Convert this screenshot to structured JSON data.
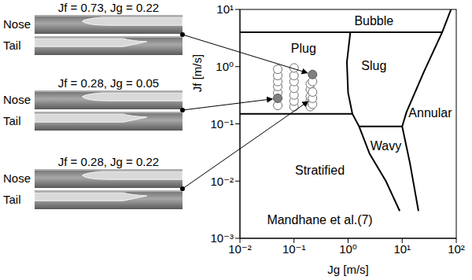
{
  "chart_data": {
    "type": "scatter",
    "x_label": "Jg [m/s]",
    "y_label": "Jf [m/s]",
    "log": true,
    "grid": false,
    "xlim": [
      0.01,
      100
    ],
    "xticks": [
      {
        "value": 0.01,
        "label": "10⁻²"
      },
      {
        "value": 0.1,
        "label": "10⁻¹"
      },
      {
        "value": 1,
        "label": "10⁰"
      },
      {
        "value": 10,
        "label": "10¹"
      },
      {
        "value": 100,
        "label": "10²"
      }
    ],
    "ylim": [
      0.001,
      10
    ],
    "yticks": [
      {
        "value": 0.001,
        "label": "10⁻³"
      },
      {
        "value": 0.01,
        "label": "10⁻²"
      },
      {
        "value": 0.1,
        "label": "10⁻¹"
      },
      {
        "value": 1,
        "label": "10⁰"
      },
      {
        "value": 10,
        "label": "10¹"
      }
    ],
    "series": [
      {
        "type": "line",
        "color": "#000000",
        "x": [
          0.01,
          55
        ],
        "values": [
          4,
          4
        ]
      },
      {
        "type": "line",
        "color": "#000000",
        "x": [
          0.01,
          1.2
        ],
        "values": [
          0.15,
          0.15
        ]
      },
      {
        "type": "line",
        "color": "#000000",
        "x": [
          1.6,
          10
        ],
        "values": [
          0.09,
          0.09
        ]
      },
      {
        "type": "line",
        "color": "#000000",
        "x": [
          1.1,
          0.95,
          1.0,
          1.2,
          1.6,
          2.5,
          5,
          9
        ],
        "values": [
          4,
          1.2,
          0.35,
          0.15,
          0.09,
          0.03,
          0.01,
          0.003
        ]
      },
      {
        "type": "line",
        "color": "#000000",
        "x": [
          80,
          55,
          25,
          12,
          10,
          14,
          20
        ],
        "values": [
          10,
          4,
          0.8,
          0.16,
          0.09,
          0.02,
          0.003
        ]
      },
      {
        "type": "scatter",
        "marker": "open_circle",
        "color": "#707070",
        "x": [
          0.05,
          0.05,
          0.05,
          0.05,
          0.05,
          0.05,
          0.1,
          0.1,
          0.1,
          0.1,
          0.1,
          0.1,
          0.1,
          0.2,
          0.2,
          0.2,
          0.2,
          0.2,
          0.22,
          0.22,
          0.22,
          0.22
        ],
        "values": [
          0.21,
          0.35,
          0.45,
          0.55,
          0.7,
          0.9,
          0.2,
          0.25,
          0.32,
          0.42,
          0.55,
          0.7,
          0.95,
          0.2,
          0.25,
          0.3,
          0.4,
          0.5,
          0.22,
          0.28,
          0.36,
          0.55
        ]
      },
      {
        "type": "scatter",
        "marker": "filled_circle",
        "color": "#808080",
        "x": [
          0.22,
          0.05
        ],
        "values": [
          0.73,
          0.28
        ]
      }
    ],
    "annotations": [
      {
        "text": "Bubble",
        "x": 3,
        "y": 6
      },
      {
        "text": "Plug",
        "x": 0.15,
        "y": 2
      },
      {
        "text": "Slug",
        "x": 3,
        "y": 1
      },
      {
        "text": "Annular",
        "x": 33,
        "y": 0.15
      },
      {
        "text": "Wavy",
        "x": 5,
        "y": 0.04
      },
      {
        "text": "Stratified",
        "x": 0.3,
        "y": 0.015
      },
      {
        "text": "Mandhane et al.(7)",
        "x": 0.3,
        "y": 0.002
      }
    ]
  },
  "photos": [
    {
      "title": "Jf = 0.73, Jg = 0.22",
      "labels": [
        "Nose",
        "Tail"
      ],
      "point": [
        0.22,
        0.73
      ]
    },
    {
      "title": "Jf = 0.28, Jg = 0.05",
      "labels": [
        "Nose",
        "Tail"
      ],
      "point": [
        0.05,
        0.28
      ]
    },
    {
      "title": "Jf = 0.28, Jg = 0.22",
      "labels": [
        "Nose",
        "Tail"
      ],
      "point": [
        0.22,
        0.28
      ]
    }
  ]
}
